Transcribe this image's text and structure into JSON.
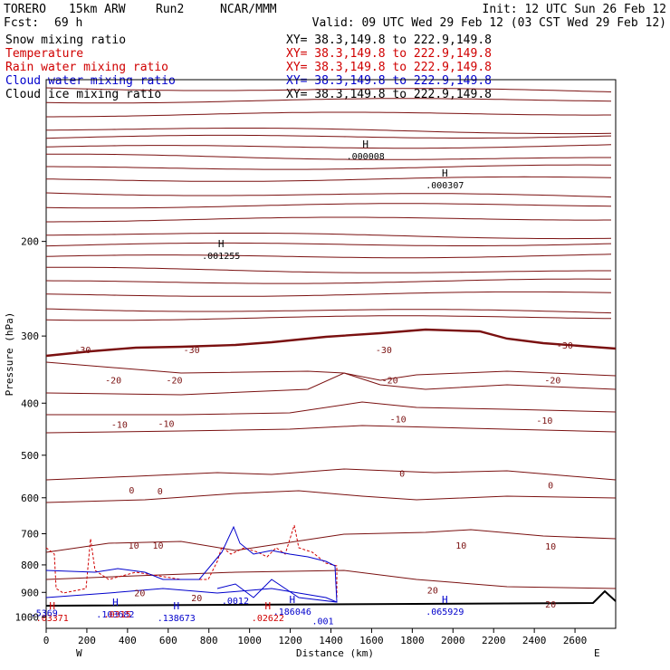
{
  "header": {
    "model": "TORERO",
    "resolution": "15km ARW",
    "run": "Run2",
    "center": "NCAR/MMM",
    "init": "Init: 12 UTC Sun 26 Feb 12",
    "fcst_label": "Fcst:",
    "fcst_value": "69 h",
    "valid": "Valid: 09 UTC Wed 29 Feb 12 (03 CST Wed 29 Feb 12)"
  },
  "fields": [
    {
      "name": "Snow mixing ratio",
      "color": "#000000",
      "xy": "XY=  38.3,149.8  to 222.9,149.8",
      "xy_color": "#000000"
    },
    {
      "name": "Temperature",
      "color": "#d00000",
      "xy": "XY=  38.3,149.8  to 222.9,149.8",
      "xy_color": "#d00000"
    },
    {
      "name": "Rain water mixing ratio",
      "color": "#d00000",
      "xy": "XY=  38.3,149.8  to 222.9,149.8",
      "xy_color": "#d00000"
    },
    {
      "name": "Cloud water mixing ratio",
      "color": "#0000cc",
      "xy": "XY=  38.3,149.8  to 222.9,149.8",
      "xy_color": "#0000cc"
    },
    {
      "name": "Cloud ice mixing ratio",
      "color": "#000000",
      "xy": "XY=  38.3,149.8  to 222.9,149.8",
      "xy_color": "#000000"
    }
  ],
  "colors": {
    "temperature": "#7a1010",
    "zero_isotherm": "#7a1010",
    "rain": "#d00000",
    "cloud_water": "#0000cc",
    "black": "#000000"
  },
  "chart_data": {
    "type": "line",
    "title": "",
    "xlabel": "Distance (km)",
    "ylabel": "Pressure (hPa)",
    "xlim": [
      0,
      2800
    ],
    "ylim": [
      1050,
      100
    ],
    "y_scale": "log",
    "x_ticks": [
      0,
      200,
      400,
      600,
      800,
      1000,
      1200,
      1400,
      1600,
      1800,
      2000,
      2200,
      2400,
      2600
    ],
    "y_ticks": [
      200,
      300,
      400,
      500,
      600,
      700,
      800,
      900,
      1000
    ],
    "x_end_labels": {
      "left": "W",
      "right": "E"
    },
    "isotherm_labels": [
      {
        "text": "-30",
        "x": 180,
        "y": 318
      },
      {
        "text": "-30",
        "x": 715,
        "y": 318
      },
      {
        "text": "-30",
        "x": 1660,
        "y": 318
      },
      {
        "text": "-30",
        "x": 2550,
        "y": 312
      },
      {
        "text": "-20",
        "x": 330,
        "y": 362
      },
      {
        "text": "-20",
        "x": 630,
        "y": 362
      },
      {
        "text": "-20",
        "x": 1690,
        "y": 362
      },
      {
        "text": "-20",
        "x": 2490,
        "y": 362
      },
      {
        "text": "-10",
        "x": 360,
        "y": 438
      },
      {
        "text": "-10",
        "x": 590,
        "y": 436
      },
      {
        "text": "-10",
        "x": 1730,
        "y": 428
      },
      {
        "text": "-10",
        "x": 2450,
        "y": 430
      },
      {
        "text": "0",
        "x": 420,
        "y": 580
      },
      {
        "text": "0",
        "x": 560,
        "y": 582
      },
      {
        "text": "0",
        "x": 1750,
        "y": 540
      },
      {
        "text": "0",
        "x": 2480,
        "y": 568
      },
      {
        "text": "10",
        "x": 430,
        "y": 735
      },
      {
        "text": "10",
        "x": 550,
        "y": 735
      },
      {
        "text": "10",
        "x": 2040,
        "y": 735
      },
      {
        "text": "10",
        "x": 2480,
        "y": 738
      },
      {
        "text": "20",
        "x": 460,
        "y": 900
      },
      {
        "text": "20",
        "x": 740,
        "y": 920
      },
      {
        "text": "20",
        "x": 1900,
        "y": 890
      },
      {
        "text": "20",
        "x": 2480,
        "y": 945
      }
    ],
    "maxima": [
      {
        "mark": "H",
        "value": ".001255",
        "x": 860,
        "y": 210,
        "color": "#000000"
      },
      {
        "mark": "H",
        "value": ".000008",
        "x": 1570,
        "y": 137,
        "color": "#000000"
      },
      {
        "mark": "H",
        "value": ".000307",
        "x": 1960,
        "y": 155,
        "color": "#000000"
      },
      {
        "mark": "H",
        "value": ".186046",
        "x": 1210,
        "y": 965,
        "color": "#0000cc"
      },
      {
        "mark": "H",
        "value": ".065929",
        "x": 1960,
        "y": 965,
        "color": "#0000cc"
      },
      {
        "mark": "H",
        "value": ".138673",
        "x": 640,
        "y": 990,
        "color": "#0000cc"
      },
      {
        "mark": "H",
        "value": ".103682",
        "x": 340,
        "y": 975,
        "color": "#0000cc"
      },
      {
        "mark": "H",
        "value": ".02622",
        "x": 1090,
        "y": 990,
        "color": "#d00000"
      },
      {
        "mark": "H",
        "value": ".03371",
        "x": 30,
        "y": 990,
        "color": "#d00000"
      },
      {
        "mark": "",
        "value": ".5369",
        "x": -10,
        "y": 970,
        "color": "#0000cc"
      },
      {
        "mark": "",
        "value": ".001",
        "x": 1360,
        "y": 1005,
        "color": "#0000cc"
      },
      {
        "mark": "",
        "value": ".0012",
        "x": 930,
        "y": 920,
        "color": "#0000cc"
      },
      {
        "mark": "",
        "value": ".0315",
        "x": 350,
        "y": 975,
        "color": "#d00000"
      }
    ]
  }
}
